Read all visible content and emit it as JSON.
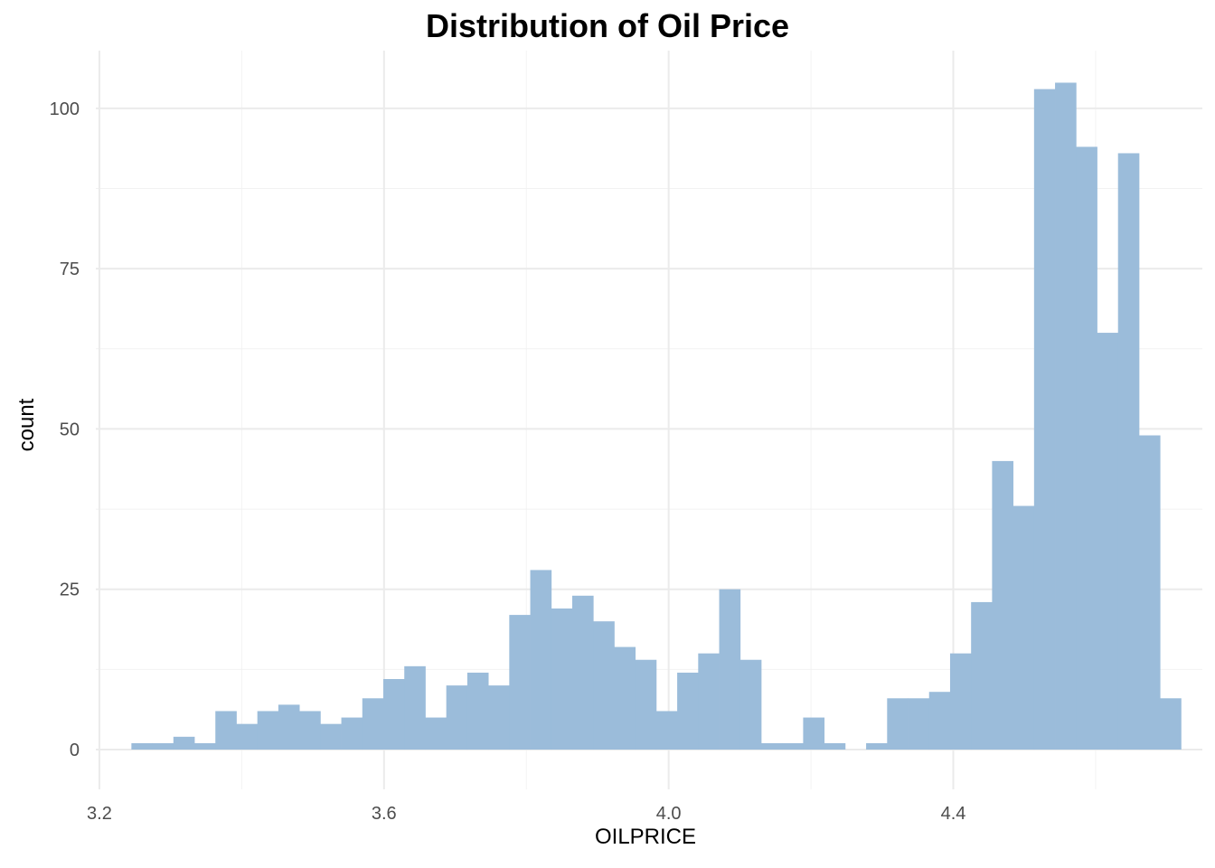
{
  "chart_data": {
    "type": "bar",
    "title": "Distribution of Oil Price",
    "xlabel": "OILPRICE",
    "ylabel": "count",
    "xlim": [
      3.195,
      4.75
    ],
    "ylim": [
      -6.2,
      109
    ],
    "x_ticks": [
      3.2,
      3.6,
      4.0,
      4.4
    ],
    "x_tick_labels": [
      "3.2",
      "3.6",
      "4.0",
      "4.4"
    ],
    "y_ticks": [
      0,
      25,
      50,
      75,
      100
    ],
    "y_tick_labels": [
      "0",
      "25",
      "50",
      "75",
      "100"
    ],
    "grid": true,
    "bar_color": "#9bbcda",
    "bin_start": 3.245,
    "bin_width": 0.0295,
    "values": [
      1,
      1,
      2,
      1,
      6,
      4,
      6,
      7,
      6,
      4,
      5,
      8,
      11,
      13,
      5,
      10,
      12,
      10,
      21,
      28,
      22,
      24,
      20,
      16,
      14,
      6,
      12,
      15,
      25,
      14,
      1,
      1,
      5,
      1,
      0,
      1,
      8,
      8,
      9,
      15,
      23,
      45,
      38,
      103,
      104,
      94,
      65,
      93,
      49,
      8
    ]
  }
}
